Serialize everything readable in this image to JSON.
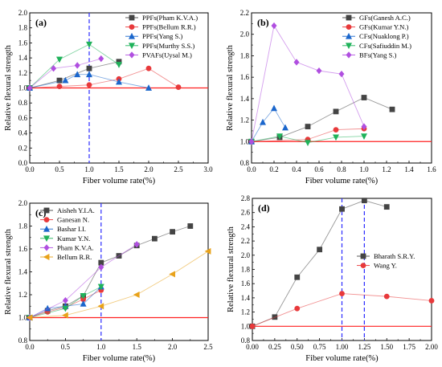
{
  "chart_data": [
    {
      "type": "line",
      "panel_label": "(a)",
      "xlabel": "Fiber volume rate(%)",
      "ylabel": "Relative flexural strength",
      "xlim": [
        0.0,
        3.0
      ],
      "ylim": [
        0.0,
        2.0
      ],
      "xticks": [
        "0.0",
        "0.5",
        "1.0",
        "1.5",
        "2.0",
        "2.5",
        "3.0"
      ],
      "yticks": [
        "0.0",
        "0.2",
        "0.4",
        "0.6",
        "0.8",
        "1.0",
        "1.2",
        "1.4",
        "1.6",
        "1.8",
        "2.0"
      ],
      "reference_line_y": 1.0,
      "vertical_dashed_lines_x": [
        1.0
      ],
      "legend_position": "top-right",
      "series": [
        {
          "name": "PPFs(Pham K.V.A.)",
          "color": "#444444",
          "marker": "square",
          "x": [
            0,
            0.5,
            1.0,
            1.5
          ],
          "y": [
            1.0,
            1.1,
            1.26,
            1.35
          ]
        },
        {
          "name": "PPFs(Bellum R.R.)",
          "color": "#e8393b",
          "marker": "circle",
          "x": [
            0,
            0.5,
            1.0,
            1.5,
            2.0,
            2.5
          ],
          "y": [
            1.0,
            1.02,
            1.04,
            1.12,
            1.26,
            1.01
          ]
        },
        {
          "name": "PPFs(Yang S.)",
          "color": "#1a66cc",
          "marker": "triangle-up",
          "x": [
            0,
            0.6,
            0.8,
            1.0,
            1.5,
            2.0
          ],
          "y": [
            1.0,
            1.1,
            1.18,
            1.18,
            1.08,
            1.0
          ]
        },
        {
          "name": "PPFs(Murthy S.S.)",
          "color": "#1fb25a",
          "marker": "triangle-down",
          "x": [
            0,
            0.5,
            1.0,
            1.5
          ],
          "y": [
            1.0,
            1.38,
            1.58,
            1.31
          ]
        },
        {
          "name": "PVAFs(Uysal M.)",
          "color": "#b04fe0",
          "marker": "diamond",
          "x": [
            0,
            0.4,
            0.8,
            1.2
          ],
          "y": [
            1.0,
            1.26,
            1.3,
            1.39
          ]
        }
      ]
    },
    {
      "type": "line",
      "panel_label": "(b)",
      "xlabel": "Fiber volume rate(%)",
      "ylabel": "Relative flexural strength",
      "xlim": [
        0.0,
        1.6
      ],
      "ylim": [
        0.8,
        2.2
      ],
      "xticks": [
        "0.0",
        "0.2",
        "0.4",
        "0.6",
        "0.8",
        "1.0",
        "1.2",
        "1.4",
        "1.6"
      ],
      "yticks": [
        "0.8",
        "1.0",
        "1.2",
        "1.4",
        "1.6",
        "1.8",
        "2.0",
        "2.2"
      ],
      "reference_line_y": 1.0,
      "legend_position": "top-right",
      "series": [
        {
          "name": "GFs(Ganesh A.C.)",
          "color": "#444444",
          "marker": "square",
          "x": [
            0,
            0.25,
            0.5,
            0.75,
            1.0,
            1.25
          ],
          "y": [
            1.0,
            1.04,
            1.14,
            1.28,
            1.41,
            1.3
          ]
        },
        {
          "name": "GFs(Kumar Y.N.)",
          "color": "#e8393b",
          "marker": "circle",
          "x": [
            0,
            0.5,
            0.75,
            1.0
          ],
          "y": [
            1.0,
            1.02,
            1.11,
            1.12
          ]
        },
        {
          "name": "CFs(Nuaklong P.)",
          "color": "#1a66cc",
          "marker": "triangle-up",
          "x": [
            0,
            0.1,
            0.2,
            0.3
          ],
          "y": [
            1.0,
            1.18,
            1.31,
            1.13
          ]
        },
        {
          "name": "CFs(Safiuddin M.)",
          "color": "#1fb25a",
          "marker": "triangle-down",
          "x": [
            0,
            0.25,
            0.5,
            0.75,
            1.0
          ],
          "y": [
            1.0,
            1.05,
            0.99,
            1.04,
            1.05
          ]
        },
        {
          "name": "BFs(Yang S.)",
          "color": "#b04fe0",
          "marker": "diamond",
          "x": [
            0,
            0.2,
            0.4,
            0.6,
            0.8,
            1.0
          ],
          "y": [
            1.0,
            2.08,
            1.74,
            1.66,
            1.63,
            1.14
          ]
        }
      ]
    },
    {
      "type": "line",
      "panel_label": "(c)",
      "xlabel": "Fiber volume rate(%)",
      "ylabel": "Relative flexural strength",
      "xlim": [
        0.0,
        2.5
      ],
      "ylim": [
        0.8,
        2.0
      ],
      "xticks": [
        "0.0",
        "0.5",
        "1.0",
        "1.5",
        "2.0",
        "2.5"
      ],
      "yticks": [
        "0.8",
        "1.0",
        "1.2",
        "1.4",
        "1.6",
        "1.8",
        "2.0"
      ],
      "reference_line_y": 1.0,
      "vertical_dashed_lines_x": [
        1.0
      ],
      "legend_position": "top-left",
      "series": [
        {
          "name": "Aisheh Y.I.A.",
          "color": "#444444",
          "marker": "square",
          "x": [
            0,
            0.25,
            0.5,
            0.75,
            1.0,
            1.25,
            1.5,
            1.75,
            2.0,
            2.25
          ],
          "y": [
            1.0,
            1.06,
            1.1,
            1.19,
            1.48,
            1.54,
            1.63,
            1.69,
            1.75,
            1.8
          ]
        },
        {
          "name": "Ganesan N.",
          "color": "#e8393b",
          "marker": "circle",
          "x": [
            0,
            0.25,
            0.5,
            0.75,
            1.0
          ],
          "y": [
            1.0,
            1.05,
            1.09,
            1.16,
            1.24
          ]
        },
        {
          "name": "Bashar I.I.",
          "color": "#1a66cc",
          "marker": "triangle-up",
          "x": [
            0,
            0.25,
            0.5,
            0.75,
            1.0
          ],
          "y": [
            1.0,
            1.08,
            1.1,
            1.12,
            1.27
          ]
        },
        {
          "name": "Kumar Y.N.",
          "color": "#1fb25a",
          "marker": "triangle-down",
          "x": [
            0,
            0.5,
            0.75,
            1.0
          ],
          "y": [
            1.0,
            1.08,
            1.19,
            1.27
          ]
        },
        {
          "name": "Pham K.V.A.",
          "color": "#b04fe0",
          "marker": "diamond",
          "x": [
            0,
            0.5,
            1.0,
            1.5
          ],
          "y": [
            1.0,
            1.15,
            1.44,
            1.64
          ]
        },
        {
          "name": "Bellum R.R.",
          "color": "#e8a21a",
          "marker": "triangle-left",
          "x": [
            0,
            0.5,
            1.0,
            1.5,
            2.0,
            2.5
          ],
          "y": [
            1.0,
            1.02,
            1.1,
            1.2,
            1.38,
            1.58
          ]
        }
      ]
    },
    {
      "type": "line",
      "panel_label": "(d)",
      "xlabel": "Fiber volume rate(%)",
      "ylabel": "Relative flexural strength",
      "xlim": [
        0.0,
        2.0
      ],
      "ylim": [
        0.8,
        2.8
      ],
      "xticks": [
        "0.00",
        "0.25",
        "0.50",
        "0.75",
        "1.00",
        "1.25",
        "1.50",
        "1.75",
        "2.00"
      ],
      "yticks": [
        "0.8",
        "1.0",
        "1.2",
        "1.4",
        "1.6",
        "1.8",
        "2.0",
        "2.2",
        "2.4",
        "2.6",
        "2.8"
      ],
      "reference_line_y": 1.0,
      "vertical_dashed_lines_x": [
        1.0,
        1.25
      ],
      "legend_position": "center-right",
      "series": [
        {
          "name": "Bharath S.R.Y.",
          "color": "#444444",
          "marker": "square",
          "x": [
            0,
            0.25,
            0.5,
            0.75,
            1.0,
            1.25,
            1.5
          ],
          "y": [
            1.0,
            1.13,
            1.69,
            2.08,
            2.65,
            2.77,
            2.68
          ]
        },
        {
          "name": "Wang Y.",
          "color": "#e8393b",
          "marker": "circle",
          "x": [
            0,
            0.5,
            1.0,
            1.5,
            2.0
          ],
          "y": [
            1.0,
            1.25,
            1.46,
            1.42,
            1.36
          ]
        }
      ]
    }
  ]
}
